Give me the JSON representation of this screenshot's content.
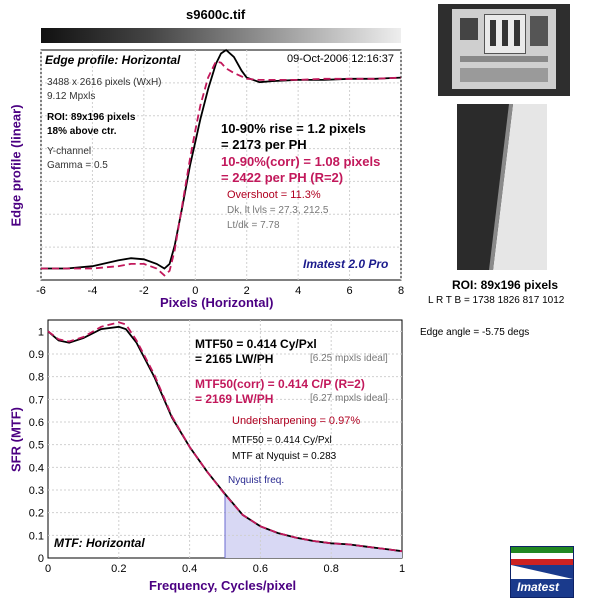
{
  "file_title": "s9600c.tif",
  "colors": {
    "purple": "#4b0082",
    "magenta": "#c2185b",
    "navy": "#1a1a8c",
    "nyquist_fill": "#d8d8f4",
    "imatest_blue": "#1a3a8c",
    "imatest_red": "#cc2222",
    "imatest_green": "#228822"
  },
  "edge_panel": {
    "title": "Edge profile: Horizontal",
    "timestamp": "09-Oct-2006 12:16:37",
    "info_lines": [
      "3488 x 2616 pixels (WxH)",
      "9.12 Mpxls"
    ],
    "roi_lines": [
      "ROI: 89x196 pixels",
      "18% above ctr."
    ],
    "channel_lines": [
      "Y-channel",
      "Gamma = 0.5"
    ],
    "rise_lines": [
      "10-90% rise = 1.2 pixels",
      "= 2173 per PH"
    ],
    "rise_corr_lines": [
      "10-90%(corr) = 1.08 pixels",
      "= 2422 per PH  (R=2)"
    ],
    "overshoot": "Overshoot = 11.3%",
    "dk_lines": [
      "Dk, lt lvls = 27.3, 212.5",
      "Lt/dk = 7.78"
    ],
    "brand": "Imatest 2.0 Pro",
    "ylabel": "Edge profile (linear)",
    "xlabel": "Pixels (Horizontal)",
    "xticks": [
      "-6",
      "-4",
      "-2",
      "0",
      "2",
      "4",
      "6",
      "8"
    ]
  },
  "mtf_panel": {
    "title": "MTF: Horizontal",
    "ylabel": "SFR (MTF)",
    "xlabel": "Frequency, Cycles/pixel",
    "xticks": [
      "0",
      "0.2",
      "0.4",
      "0.6",
      "0.8",
      "1"
    ],
    "yticks": [
      "0",
      "0.1",
      "0.2",
      "0.3",
      "0.4",
      "0.5",
      "0.6",
      "0.7",
      "0.8",
      "0.9",
      "1"
    ],
    "mtf50_lines": [
      "MTF50 = 0.414 Cy/Pxl",
      "= 2165 LW/PH"
    ],
    "ideal1": "[6.25 mpxls ideal]",
    "mtf50_corr_lines": [
      "MTF50(corr) = 0.414 C/P  (R=2)",
      "= 2169 LW/PH"
    ],
    "ideal2": "[6.27 mpxls ideal]",
    "undersharpening": "Undersharpening = 0.97%",
    "mtf50_small": "MTF50 = 0.414 Cy/Pxl",
    "mtf_nyquist": "MTF at Nyquist = 0.283",
    "nyquist_label": "Nyquist freq."
  },
  "roi_caption": "ROI: 89x196 pixels",
  "roi_coords": "L R  T B = 1738 1826  817 1012",
  "edge_angle": "Edge angle = -5.75 degs",
  "logo_text": "Imatest",
  "chart_data": [
    {
      "type": "line",
      "title": "Edge profile: Horizontal",
      "xlabel": "Pixels (Horizontal)",
      "ylabel": "Edge profile (linear)",
      "xlim": [
        -6,
        8
      ],
      "ylim": [
        0,
        1
      ],
      "grid": true,
      "series": [
        {
          "style": "solid-black",
          "x": [
            -6,
            -5,
            -4,
            -3,
            -2.5,
            -2,
            -1.5,
            -1.2,
            -1,
            -0.8,
            -0.5,
            -0.2,
            0,
            0.2,
            0.5,
            0.8,
            1,
            1.2,
            1.5,
            1.8,
            2,
            2.5,
            3,
            4,
            5,
            6,
            7,
            8
          ],
          "y": [
            0.05,
            0.05,
            0.06,
            0.085,
            0.095,
            0.09,
            0.07,
            0.05,
            0.07,
            0.15,
            0.32,
            0.5,
            0.6,
            0.7,
            0.83,
            0.94,
            0.985,
            1.0,
            0.97,
            0.91,
            0.88,
            0.86,
            0.865,
            0.87,
            0.87,
            0.875,
            0.875,
            0.88
          ]
        },
        {
          "style": "dashed-magenta",
          "x": [
            -6,
            -5,
            -4,
            -3,
            -2.5,
            -2,
            -1.5,
            -1.2,
            -1,
            -0.8,
            -0.5,
            -0.2,
            0,
            0.2,
            0.5,
            0.8,
            1,
            1.2,
            1.5,
            1.8,
            2,
            2.5,
            3,
            4,
            5,
            6,
            7,
            8
          ],
          "y": [
            0.05,
            0.05,
            0.05,
            0.06,
            0.07,
            0.07,
            0.05,
            0.02,
            0.04,
            0.13,
            0.33,
            0.53,
            0.65,
            0.76,
            0.88,
            0.95,
            0.945,
            0.92,
            0.9,
            0.885,
            0.875,
            0.87,
            0.87,
            0.87,
            0.875,
            0.875,
            0.875,
            0.88
          ]
        }
      ]
    },
    {
      "type": "line",
      "title": "MTF: Horizontal",
      "xlabel": "Frequency, Cycles/pixel",
      "ylabel": "SFR (MTF)",
      "xlim": [
        0,
        1
      ],
      "ylim": [
        0,
        1.05
      ],
      "grid": true,
      "nyquist": 0.5,
      "mtf_at_nyquist": 0.283,
      "series": [
        {
          "style": "solid-black",
          "x": [
            0,
            0.03,
            0.06,
            0.1,
            0.15,
            0.2,
            0.22,
            0.25,
            0.3,
            0.35,
            0.4,
            0.45,
            0.5,
            0.55,
            0.6,
            0.65,
            0.7,
            0.75,
            0.8,
            0.85,
            0.9,
            0.95,
            1.0
          ],
          "y": [
            1.0,
            0.96,
            0.95,
            0.97,
            1.01,
            1.02,
            1.01,
            0.95,
            0.8,
            0.62,
            0.49,
            0.38,
            0.283,
            0.19,
            0.14,
            0.11,
            0.09,
            0.075,
            0.065,
            0.06,
            0.05,
            0.04,
            0.03
          ]
        },
        {
          "style": "dashed-magenta",
          "x": [
            0,
            0.03,
            0.06,
            0.1,
            0.15,
            0.2,
            0.22,
            0.25,
            0.3,
            0.35,
            0.4,
            0.45,
            0.5,
            0.55,
            0.6,
            0.65,
            0.7,
            0.75,
            0.8,
            0.85,
            0.9,
            0.95,
            1.0
          ],
          "y": [
            1.0,
            0.965,
            0.955,
            0.975,
            1.02,
            1.04,
            1.03,
            0.96,
            0.81,
            0.625,
            0.49,
            0.38,
            0.28,
            0.19,
            0.14,
            0.11,
            0.09,
            0.075,
            0.065,
            0.06,
            0.05,
            0.04,
            0.03
          ]
        }
      ]
    }
  ]
}
